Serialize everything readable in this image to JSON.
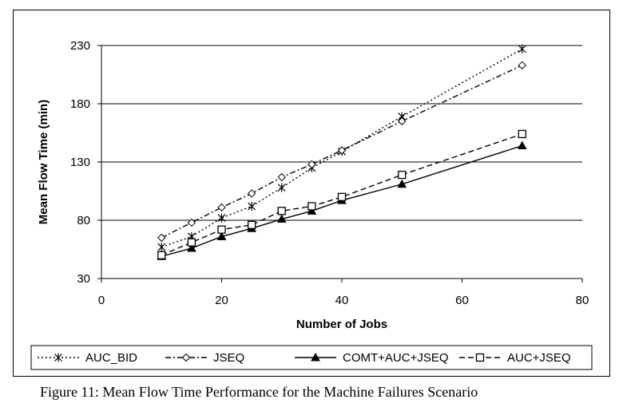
{
  "caption": "Figure 11:  Mean Flow Time Performance for the Machine Failures Scenario",
  "colors": {
    "line": "#000000",
    "grid": "#000000",
    "background": "#ffffff"
  },
  "chart_data": {
    "type": "line",
    "title": "",
    "xlabel": "Number of Jobs",
    "ylabel": "Mean Flow Time (min)",
    "xlim": [
      0,
      80
    ],
    "ylim": [
      30,
      230
    ],
    "xticks": [
      0,
      20,
      40,
      60,
      80
    ],
    "yticks": [
      30,
      80,
      130,
      180,
      230
    ],
    "grid": "horizontal",
    "legend_position": "bottom",
    "series": [
      {
        "name": "AUC_BID",
        "marker": "asterisk",
        "dash": "dotted",
        "x": [
          10,
          15,
          20,
          25,
          30,
          35,
          40,
          50,
          70
        ],
        "y": [
          57,
          66,
          82,
          92,
          108,
          125,
          139,
          169,
          227
        ]
      },
      {
        "name": "JSEQ",
        "marker": "diamond",
        "dash": "dash-dot",
        "x": [
          10,
          15,
          20,
          25,
          30,
          35,
          40,
          50,
          70
        ],
        "y": [
          65,
          78,
          91,
          103,
          117,
          128,
          140,
          165,
          213
        ]
      },
      {
        "name": "COMT+AUC+JSEQ",
        "marker": "triangle",
        "dash": "solid",
        "x": [
          10,
          15,
          20,
          25,
          30,
          35,
          40,
          50,
          70
        ],
        "y": [
          49,
          56,
          66,
          73,
          81,
          88,
          97,
          111,
          144
        ]
      },
      {
        "name": "AUC+JSEQ",
        "marker": "square",
        "dash": "dashed",
        "x": [
          10,
          15,
          20,
          25,
          30,
          35,
          40,
          50,
          70
        ],
        "y": [
          50,
          61,
          72,
          76,
          88,
          92,
          100,
          119,
          154
        ]
      }
    ]
  }
}
